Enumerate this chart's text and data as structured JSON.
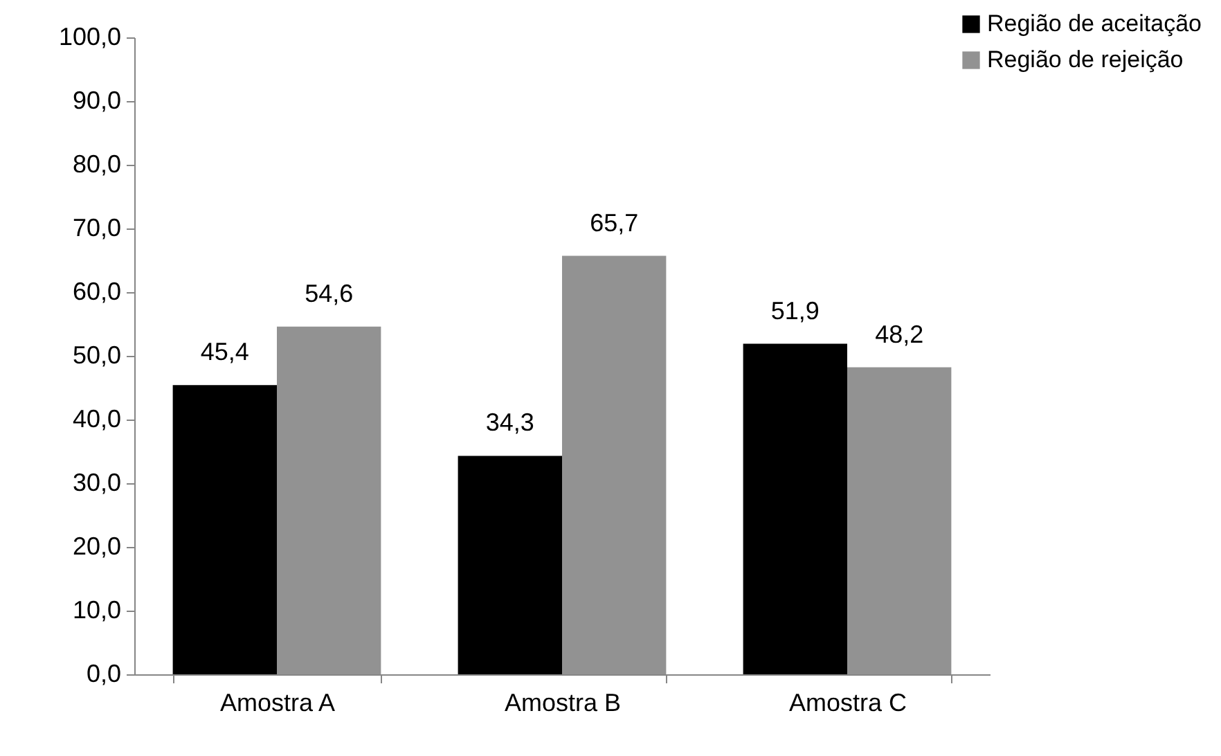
{
  "chart_data": {
    "type": "bar",
    "categories": [
      "Amostra A",
      "Amostra B",
      "Amostra C"
    ],
    "series": [
      {
        "name": "Região de aceitação",
        "color": "#000000",
        "values": [
          45.4,
          34.3,
          51.9
        ],
        "value_labels": [
          "45,4",
          "34,3",
          "51,9"
        ]
      },
      {
        "name": "Região de rejeição",
        "color": "#929292",
        "values": [
          54.6,
          65.7,
          48.2
        ],
        "value_labels": [
          "54,6",
          "65,7",
          "48,2"
        ]
      }
    ],
    "ylim": [
      0,
      100
    ],
    "yticks": [
      {
        "value": 0,
        "label": "0,0"
      },
      {
        "value": 10,
        "label": "10,0"
      },
      {
        "value": 20,
        "label": "20,0"
      },
      {
        "value": 30,
        "label": "30,0"
      },
      {
        "value": 40,
        "label": "40,0"
      },
      {
        "value": 50,
        "label": "50,0"
      },
      {
        "value": 60,
        "label": "60,0"
      },
      {
        "value": 70,
        "label": "70,0"
      },
      {
        "value": 80,
        "label": "80,0"
      },
      {
        "value": 90,
        "label": "90,0"
      },
      {
        "value": 100,
        "label": "100,0"
      }
    ],
    "grid": false,
    "legend": "top right"
  }
}
